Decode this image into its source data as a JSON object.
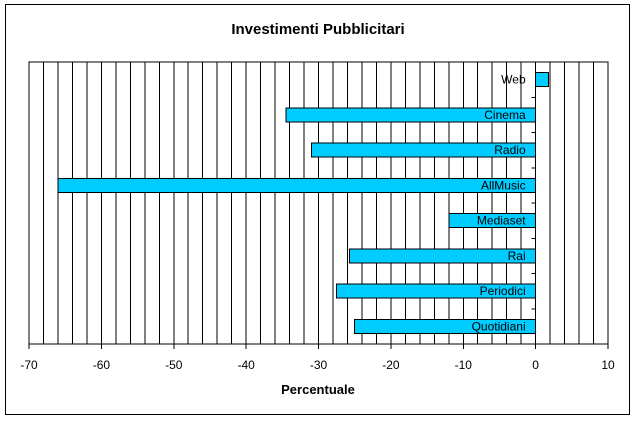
{
  "colors": {
    "bar_fill": "#00ccff",
    "bar_stroke": "#000000",
    "grid": "#000000",
    "background": "#ffffff"
  },
  "chart_data": {
    "type": "bar",
    "orientation": "horizontal",
    "title": "Investimenti Pubblicitari",
    "xlabel": "Percentuale",
    "ylabel": "",
    "categories": [
      "Web",
      "Cinema",
      "Radio",
      "AllMusic",
      "Mediaset",
      "Rai",
      "Periodici",
      "Quotidiani"
    ],
    "values": [
      1.8,
      -34.5,
      -31,
      -66,
      -12,
      -25.7,
      -27.5,
      -25
    ],
    "xlim": [
      -70,
      10
    ],
    "xticks": [
      -70,
      -60,
      -50,
      -40,
      -30,
      -20,
      -10,
      0,
      10
    ],
    "minor_grid_step": 2,
    "grid": true,
    "legend": "none"
  }
}
